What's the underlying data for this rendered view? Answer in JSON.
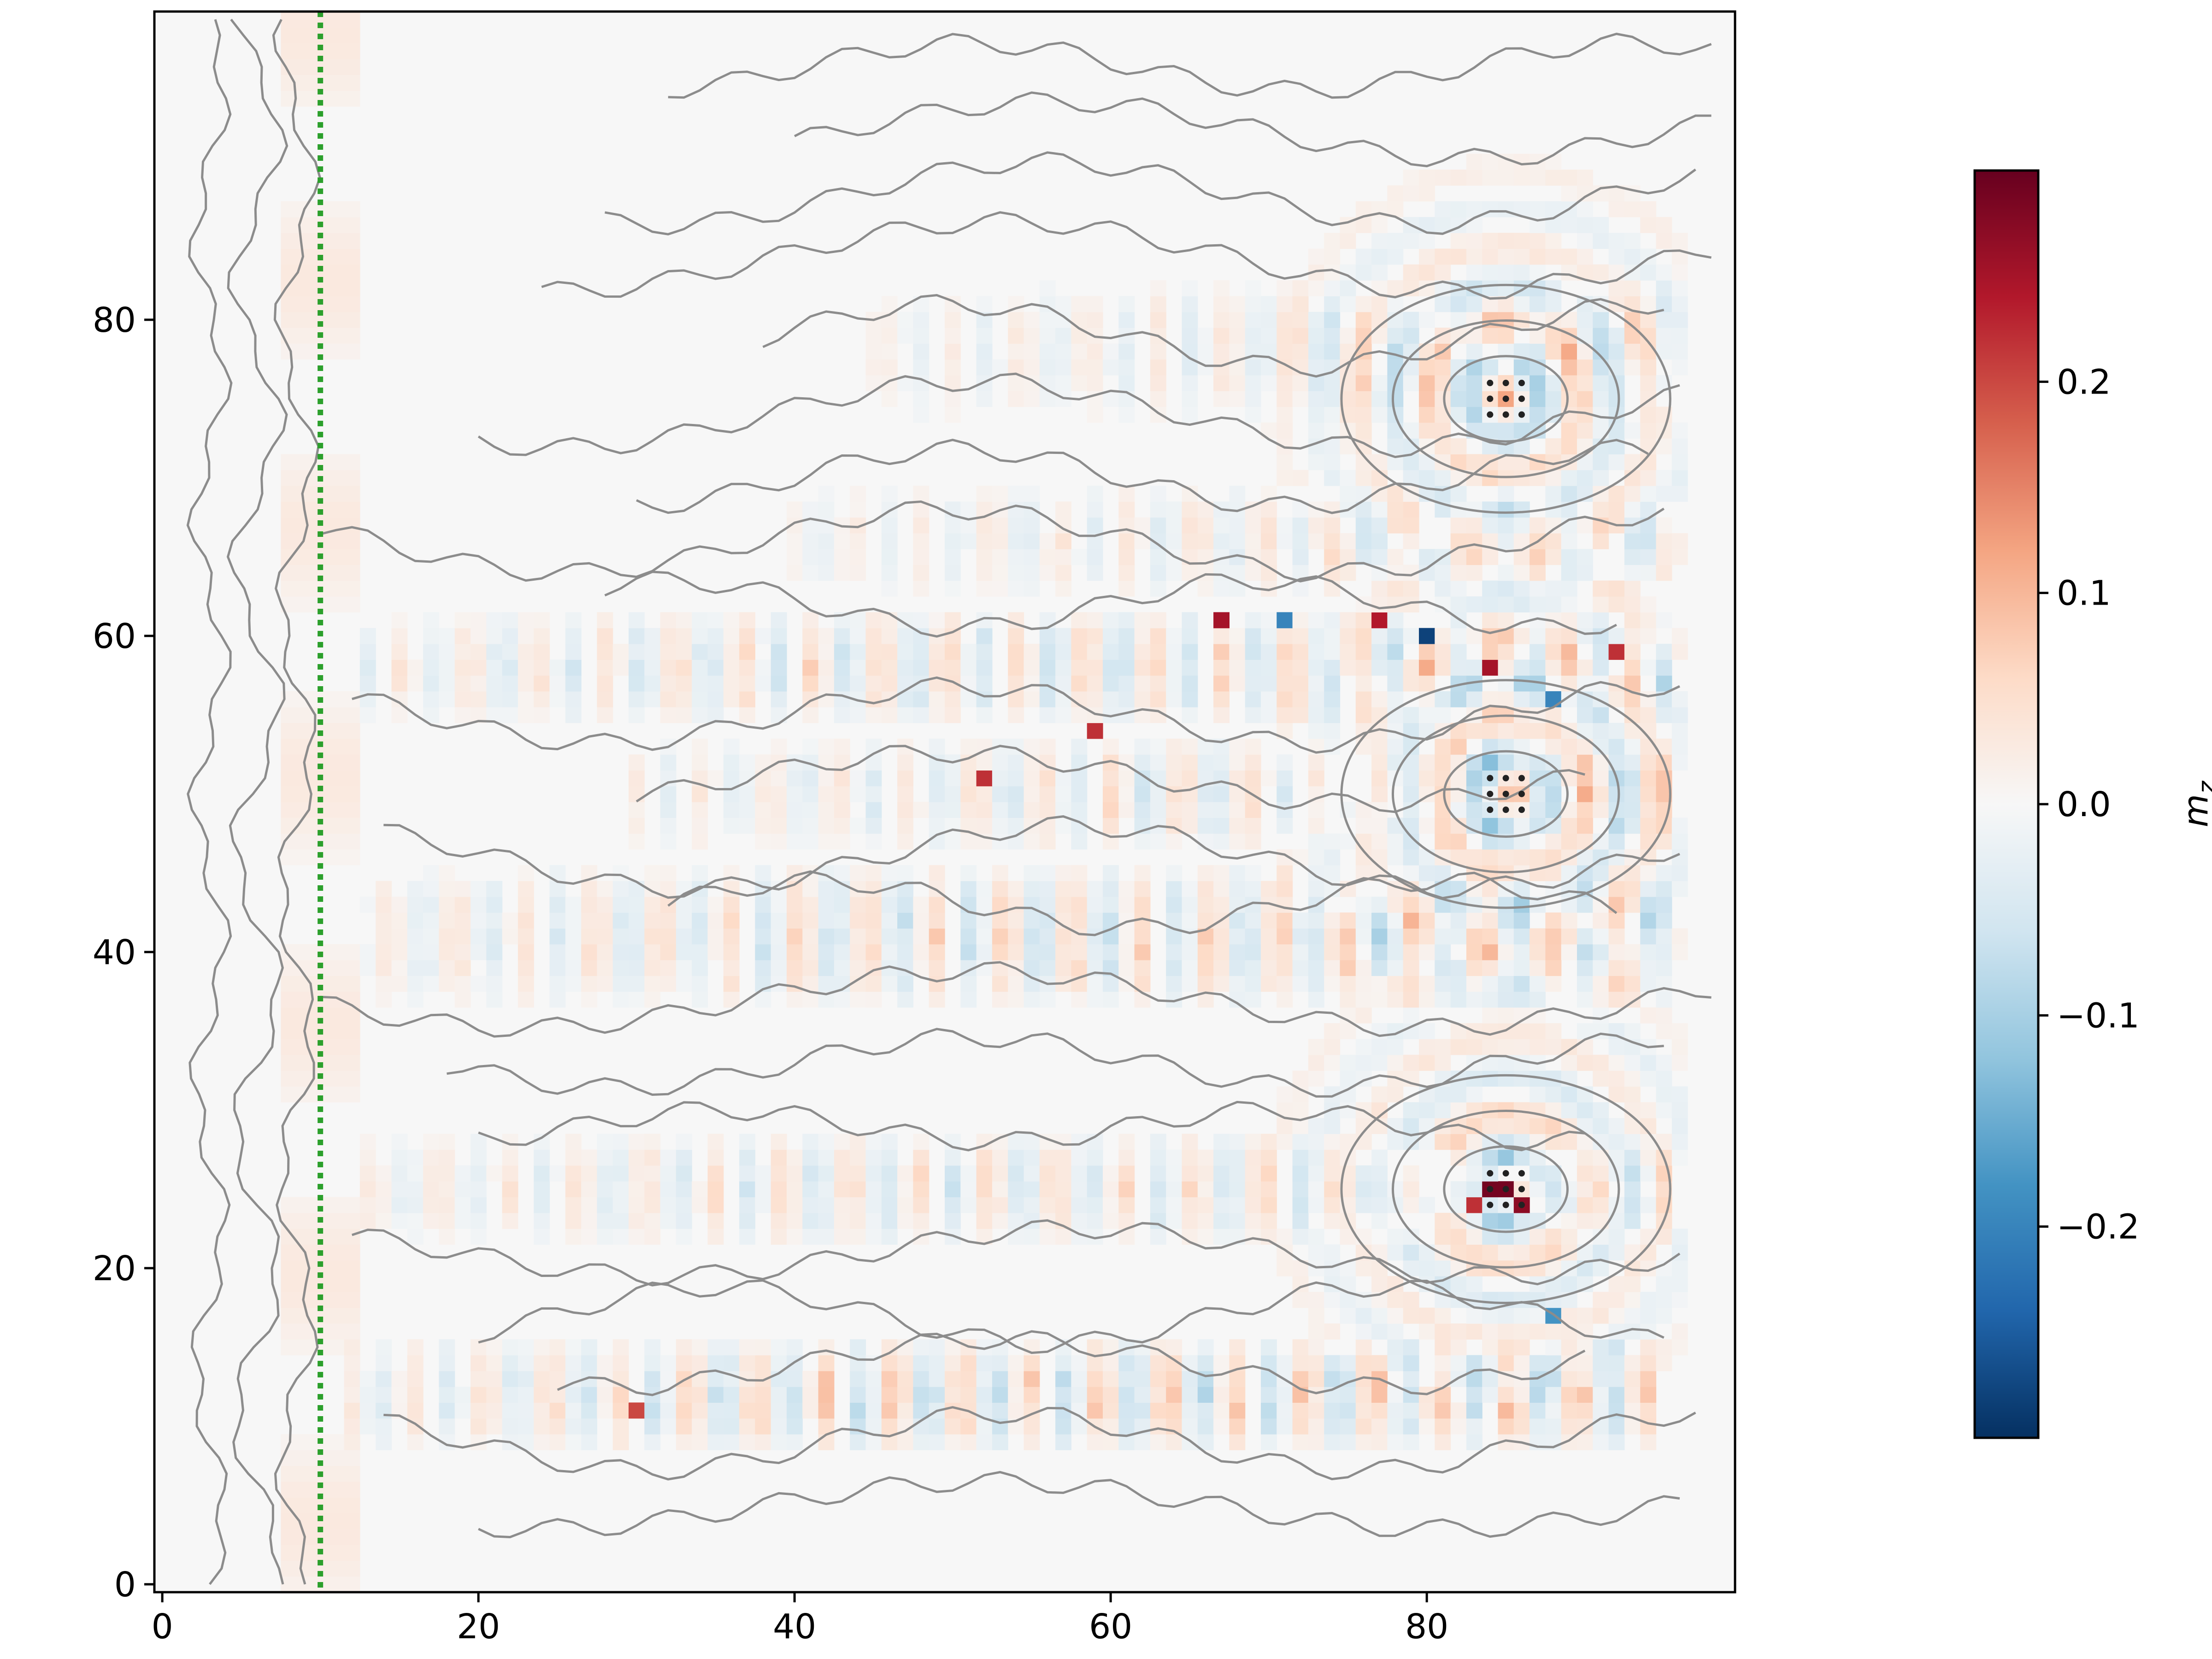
{
  "chart_data": {
    "type": "heatmap",
    "title": "",
    "xlabel": "",
    "ylabel": "",
    "xlim": [
      -0.5,
      99.5
    ],
    "ylim": [
      -0.5,
      99.5
    ],
    "x_ticks": [
      0,
      20,
      40,
      60,
      80
    ],
    "y_ticks": [
      0,
      20,
      40,
      60,
      80
    ],
    "colormap": "RdBu_r",
    "colorbar": {
      "label_base": "m",
      "label_sub": "z",
      "range": [
        -0.3,
        0.3
      ],
      "ticks": [
        -0.2,
        -0.1,
        0.0,
        0.1,
        0.2
      ],
      "tick_labels": [
        "−0.2",
        "−0.1",
        "0.0",
        "0.1",
        "0.2"
      ]
    },
    "reference_line": {
      "x": 10,
      "style": "dotted",
      "color": "#2ca02c"
    },
    "stripe_bands": [
      {
        "name": "band-y60",
        "x_start": 13,
        "x_end": 95,
        "y_center": 58,
        "half_width": 3,
        "amp": 0.06
      },
      {
        "name": "band-y50",
        "x_start": 30,
        "x_end": 95,
        "y_center": 50,
        "half_width": 3,
        "amp": 0.05
      },
      {
        "name": "band-y41",
        "x_start": 13,
        "x_end": 95,
        "y_center": 41,
        "half_width": 4,
        "amp": 0.06
      },
      {
        "name": "band-y25",
        "x_start": 13,
        "x_end": 95,
        "y_center": 25,
        "half_width": 3,
        "amp": 0.05
      },
      {
        "name": "band-y12",
        "x_start": 12,
        "x_end": 95,
        "y_center": 12,
        "half_width": 3,
        "amp": 0.07
      },
      {
        "name": "band-y78",
        "x_start": 45,
        "x_end": 95,
        "y_center": 78,
        "half_width": 4,
        "amp": 0.04
      },
      {
        "name": "band-y66",
        "x_start": 40,
        "x_end": 95,
        "y_center": 66,
        "half_width": 3,
        "amp": 0.04
      }
    ],
    "sources": [
      {
        "name": "source-top",
        "x": 85,
        "y": 75
      },
      {
        "name": "source-middle",
        "x": 85,
        "y": 50
      },
      {
        "name": "source-bottom",
        "x": 85,
        "y": 25
      }
    ],
    "highlight_cells": [
      {
        "x": 84,
        "y": 25,
        "value": 0.29
      },
      {
        "x": 85,
        "y": 25,
        "value": 0.29
      },
      {
        "x": 86,
        "y": 24,
        "value": 0.27
      },
      {
        "x": 83,
        "y": 24,
        "value": 0.22
      },
      {
        "x": 80,
        "y": 60,
        "value": -0.28
      },
      {
        "x": 67,
        "y": 61,
        "value": 0.25
      },
      {
        "x": 77,
        "y": 61,
        "value": 0.24
      },
      {
        "x": 84,
        "y": 58,
        "value": 0.25
      },
      {
        "x": 92,
        "y": 59,
        "value": 0.22
      },
      {
        "x": 59,
        "y": 54,
        "value": 0.22
      },
      {
        "x": 52,
        "y": 51,
        "value": 0.22
      },
      {
        "x": 30,
        "y": 11,
        "value": 0.2
      },
      {
        "x": 71,
        "y": 61,
        "value": -0.2
      },
      {
        "x": 88,
        "y": 56,
        "value": -0.2
      },
      {
        "x": 88,
        "y": 17,
        "value": -0.18
      }
    ]
  }
}
